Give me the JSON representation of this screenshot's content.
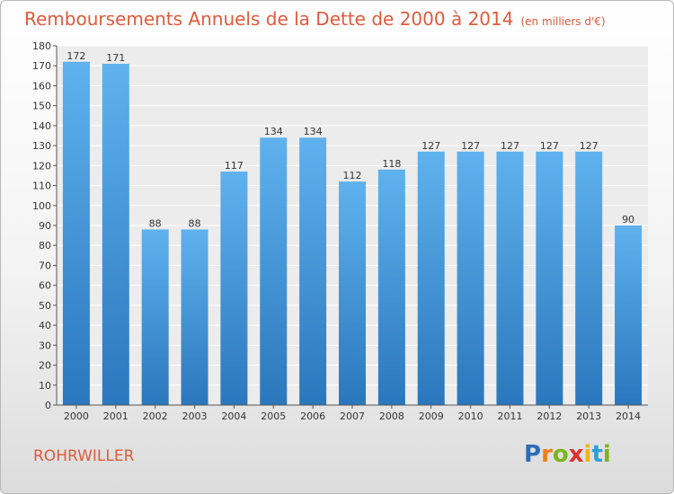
{
  "header": {
    "title": "Remboursements Annuels de la Dette de 2000 à 2014",
    "unit": "(en milliers d'€)"
  },
  "commune": "ROHRWILLER",
  "logo": {
    "text": "Proxiti",
    "letters": [
      {
        "ch": "P",
        "color": "#2e6db4"
      },
      {
        "ch": "r",
        "color": "#f07c1a"
      },
      {
        "ch": "o",
        "color": "#7ab51d"
      },
      {
        "ch": "x",
        "color": "#e0312b"
      },
      {
        "ch": "i",
        "color": "#f0b41a"
      },
      {
        "ch": "t",
        "color": "#2e9fd4"
      },
      {
        "ch": "i",
        "color": "#7ab51d"
      }
    ]
  },
  "chart_data": {
    "type": "bar",
    "title": "Remboursements Annuels de la Dette de 2000 à 2014",
    "unit": "en milliers d'€",
    "categories": [
      "2000",
      "2001",
      "2002",
      "2003",
      "2004",
      "2005",
      "2006",
      "2007",
      "2008",
      "2009",
      "2010",
      "2011",
      "2012",
      "2013",
      "2014"
    ],
    "values": [
      172,
      171,
      88,
      88,
      117,
      134,
      134,
      112,
      118,
      127,
      127,
      127,
      127,
      127,
      90
    ],
    "ylim": [
      0,
      180
    ],
    "ytick_step": 10,
    "grid": true,
    "bar_color": "#4a9ede"
  }
}
